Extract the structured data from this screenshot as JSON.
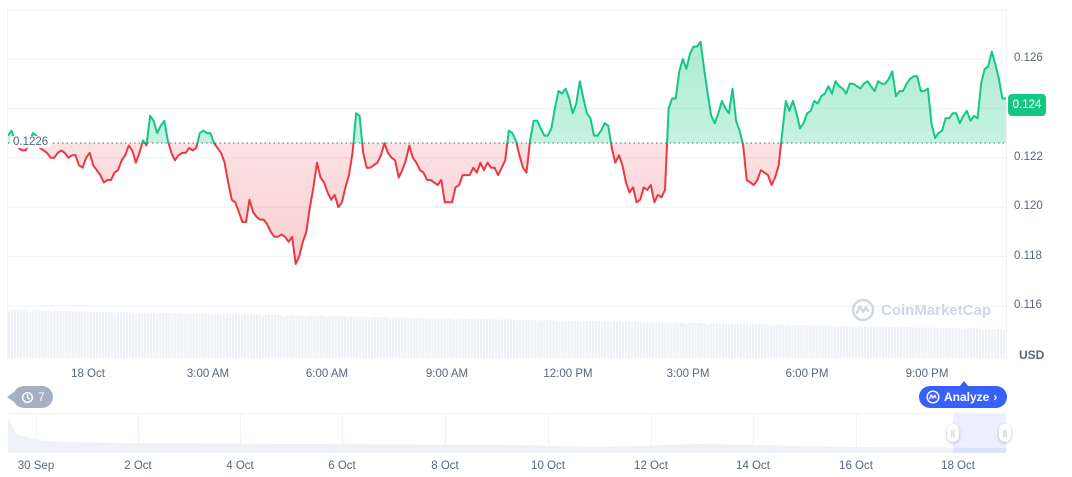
{
  "chart_data": {
    "type": "area",
    "title": "",
    "currency": "USD",
    "xlabel": "",
    "ylabel": "USD",
    "ylim": [
      0.1152,
      0.1269
    ],
    "grid": true,
    "baseline_value": 0.1226,
    "baseline_label": "0.1226",
    "current_price_label": "0.124",
    "y_ticks": [
      "0.126",
      "0.124",
      "0.122",
      "0.120",
      "0.118",
      "0.116"
    ],
    "x_ticks": [
      "18 Oct",
      "3:00 AM",
      "6:00 AM",
      "9:00 AM",
      "12:00 PM",
      "3:00 PM",
      "6:00 PM",
      "9:00 PM"
    ],
    "colors": {
      "up": "#16c784",
      "down": "#ea3943",
      "up_fill": "rgba(22,199,132,0.25)",
      "down_fill": "rgba(234,57,67,0.18)"
    },
    "series": [
      {
        "name": "Price",
        "values": [
          0.1229,
          0.1231,
          0.1226,
          0.1224,
          0.1223,
          0.1223,
          0.1226,
          0.123,
          0.1229,
          0.1224,
          0.1223,
          0.1222,
          0.122,
          0.122,
          0.1222,
          0.1223,
          0.1222,
          0.122,
          0.1221,
          0.1221,
          0.1217,
          0.1216,
          0.122,
          0.1222,
          0.1217,
          0.1215,
          0.1213,
          0.121,
          0.1211,
          0.1211,
          0.1214,
          0.1215,
          0.1219,
          0.1221,
          0.1225,
          0.1223,
          0.1218,
          0.1222,
          0.1227,
          0.1225,
          0.1237,
          0.1235,
          0.123,
          0.1233,
          0.1235,
          0.1227,
          0.1222,
          0.1219,
          0.1221,
          0.1222,
          0.1222,
          0.1224,
          0.1223,
          0.1224,
          0.123,
          0.1231,
          0.123,
          0.123,
          0.1226,
          0.1224,
          0.1222,
          0.1218,
          0.121,
          0.1203,
          0.1202,
          0.1198,
          0.1194,
          0.1194,
          0.1203,
          0.1198,
          0.1196,
          0.1195,
          0.1195,
          0.1193,
          0.119,
          0.1188,
          0.1188,
          0.1189,
          0.1188,
          0.1186,
          0.1188,
          0.1177,
          0.118,
          0.1186,
          0.119,
          0.12,
          0.1208,
          0.1218,
          0.1212,
          0.121,
          0.1206,
          0.1203,
          0.1205,
          0.12,
          0.1202,
          0.1208,
          0.1213,
          0.1222,
          0.1238,
          0.1237,
          0.1222,
          0.1216,
          0.1216,
          0.1217,
          0.1218,
          0.1221,
          0.1226,
          0.1222,
          0.122,
          0.1219,
          0.1212,
          0.1215,
          0.1219,
          0.1225,
          0.122,
          0.1218,
          0.1215,
          0.1214,
          0.1211,
          0.1211,
          0.121,
          0.1209,
          0.1211,
          0.1202,
          0.1202,
          0.1202,
          0.1208,
          0.1209,
          0.1213,
          0.1213,
          0.1213,
          0.1216,
          0.1214,
          0.1218,
          0.1215,
          0.1218,
          0.1216,
          0.1216,
          0.1213,
          0.1216,
          0.1219,
          0.1231,
          0.123,
          0.1227,
          0.1221,
          0.1216,
          0.1214,
          0.1227,
          0.1235,
          0.1235,
          0.1232,
          0.1229,
          0.1229,
          0.1232,
          0.124,
          0.1247,
          0.1246,
          0.1248,
          0.1244,
          0.1238,
          0.1242,
          0.1251,
          0.1244,
          0.1238,
          0.1236,
          0.1229,
          0.1229,
          0.1231,
          0.1234,
          0.1233,
          0.1224,
          0.1218,
          0.1221,
          0.1217,
          0.121,
          0.1206,
          0.1208,
          0.1202,
          0.1203,
          0.1208,
          0.1207,
          0.1209,
          0.1202,
          0.1205,
          0.1204,
          0.1207,
          0.124,
          0.1244,
          0.1244,
          0.1255,
          0.126,
          0.1256,
          0.1262,
          0.1265,
          0.1265,
          0.1267,
          0.1256,
          0.1246,
          0.1237,
          0.1234,
          0.1238,
          0.1243,
          0.124,
          0.1238,
          0.1248,
          0.1235,
          0.1231,
          0.1225,
          0.1211,
          0.121,
          0.1209,
          0.1211,
          0.1215,
          0.1214,
          0.1213,
          0.1209,
          0.1212,
          0.1217,
          0.123,
          0.1243,
          0.1239,
          0.1243,
          0.1238,
          0.1232,
          0.1234,
          0.1238,
          0.1239,
          0.1243,
          0.1242,
          0.1245,
          0.1246,
          0.1249,
          0.1246,
          0.1251,
          0.1249,
          0.1248,
          0.1246,
          0.125,
          0.125,
          0.1249,
          0.1248,
          0.125,
          0.1251,
          0.1249,
          0.1247,
          0.1251,
          0.125,
          0.125,
          0.1252,
          0.1255,
          0.1245,
          0.1247,
          0.1247,
          0.125,
          0.1252,
          0.1253,
          0.1253,
          0.1247,
          0.1247,
          0.1248,
          0.1234,
          0.1228,
          0.123,
          0.1231,
          0.1236,
          0.1236,
          0.1238,
          0.1238,
          0.1234,
          0.1237,
          0.1239,
          0.1235,
          0.1237,
          0.1236,
          0.125,
          0.1256,
          0.1257,
          0.1263,
          0.1258,
          0.1252,
          0.1244,
          0.1244
        ]
      }
    ],
    "volume_description": "light grey volume bars, slowly decreasing left to right"
  },
  "navigator": {
    "x_ticks": [
      "30 Sep",
      "2 Oct",
      "4 Oct",
      "6 Oct",
      "8 Oct",
      "10 Oct",
      "12 Oct",
      "14 Oct",
      "16 Oct",
      "18 Oct"
    ]
  },
  "controls": {
    "history_count": "7",
    "analyze_label": "Analyze",
    "analyze_chevron": "›"
  },
  "watermark": {
    "brand": "CoinMarketCap"
  },
  "axis": {
    "currency_label": "USD"
  }
}
